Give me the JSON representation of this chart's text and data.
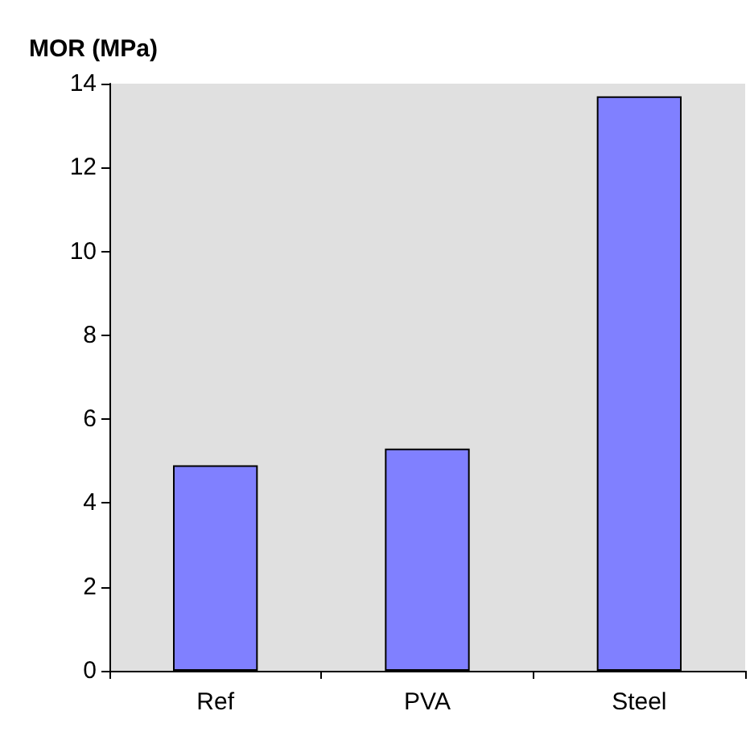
{
  "chart_data": {
    "type": "bar",
    "ylabel": "MOR (MPa)",
    "categories": [
      "Ref",
      "PVA",
      "Steel"
    ],
    "values": [
      4.9,
      5.3,
      13.7
    ],
    "color": "#8080ff",
    "ylim": [
      0,
      14
    ],
    "yticks": [
      0,
      2,
      4,
      6,
      8,
      10,
      12,
      14
    ],
    "grid": false
  }
}
